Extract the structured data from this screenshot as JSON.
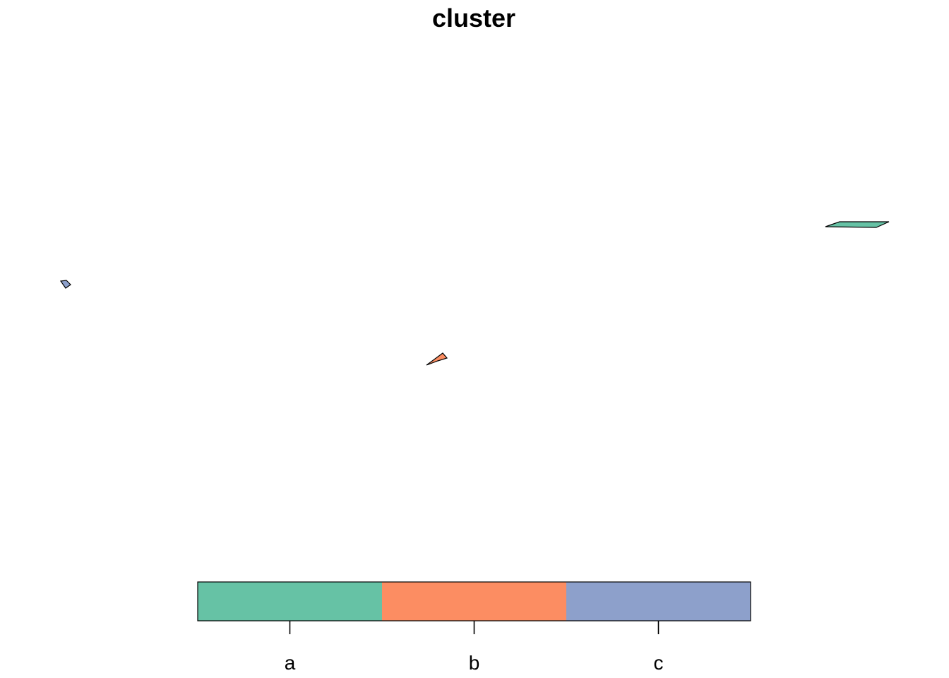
{
  "chart_data": {
    "type": "map",
    "title": "cluster",
    "categories": [
      "a",
      "b",
      "c"
    ],
    "colors": {
      "a": "#66C2A5",
      "b": "#FC8D62",
      "c": "#8DA0CB"
    },
    "regions": [
      {
        "cluster": "a"
      },
      {
        "cluster": "b"
      },
      {
        "cluster": "c"
      }
    ],
    "legend": {
      "placement": "bottom",
      "style": "color-bar",
      "labels": [
        "a",
        "b",
        "c"
      ]
    },
    "axes": false,
    "grid": false
  }
}
